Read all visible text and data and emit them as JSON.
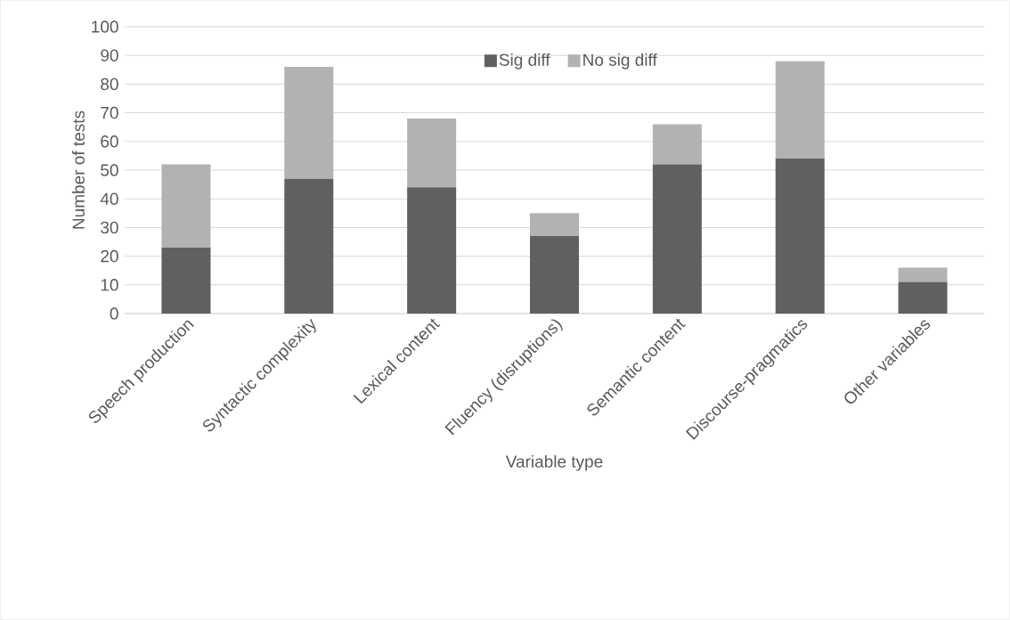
{
  "chart_data": {
    "type": "bar",
    "stacked": true,
    "xlabel": "Variable type",
    "ylabel": "Number of tests",
    "categories": [
      "Speech production",
      "Syntactic complexity",
      "Lexical content",
      "Fluency (disruptions)",
      "Semantic content",
      "Discourse-pragmatics",
      "Other variables"
    ],
    "series": [
      {
        "name": "Sig diff",
        "color": "#606060",
        "values": [
          23,
          47,
          44,
          27,
          52,
          54,
          11
        ]
      },
      {
        "name": "No sig diff",
        "color": "#b2b2b2",
        "values": [
          29,
          39,
          24,
          8,
          14,
          34,
          5
        ]
      }
    ],
    "ylim": [
      0,
      100
    ],
    "yticks": [
      0,
      10,
      20,
      30,
      40,
      50,
      60,
      70,
      80,
      90,
      100
    ],
    "grid": "y",
    "legend": "top"
  }
}
